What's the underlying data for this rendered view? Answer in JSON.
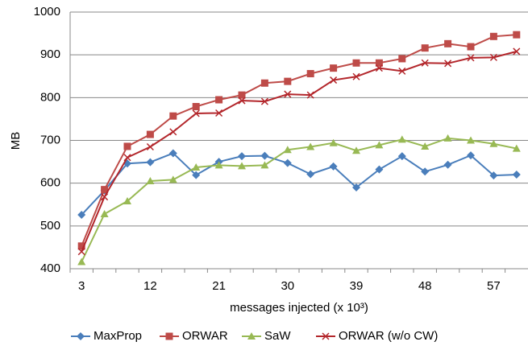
{
  "chart_data": {
    "type": "line",
    "xlabel": "messages injected (x 10³)",
    "ylabel": "MB",
    "categories": [
      3,
      null,
      null,
      12,
      null,
      null,
      21,
      null,
      null,
      30,
      null,
      null,
      39,
      null,
      null,
      48,
      null,
      null,
      57,
      null
    ],
    "series": [
      {
        "name": "MaxProp",
        "color": "#4a7ebb",
        "marker": "diamond",
        "values": [
          526,
          583,
          646,
          649,
          670,
          619,
          650,
          663,
          664,
          647,
          621,
          639,
          590,
          632,
          663,
          627,
          643,
          665,
          618,
          620
        ]
      },
      {
        "name": "ORWAR",
        "color": "#be4b48",
        "marker": "square",
        "values": [
          453,
          585,
          686,
          714,
          757,
          779,
          795,
          806,
          834,
          838,
          856,
          869,
          881,
          881,
          891,
          916,
          926,
          919,
          943,
          947
        ]
      },
      {
        "name": "SaW",
        "color": "#98b954",
        "marker": "triangle",
        "values": [
          416,
          528,
          558,
          605,
          608,
          637,
          642,
          640,
          642,
          678,
          685,
          694,
          676,
          689,
          702,
          686,
          705,
          700,
          692,
          681
        ]
      },
      {
        "name": "ORWAR (w/o CW)",
        "color": "#b3262b",
        "marker": "x",
        "values": [
          440,
          568,
          660,
          685,
          720,
          763,
          764,
          793,
          791,
          808,
          806,
          841,
          849,
          869,
          862,
          881,
          880,
          893,
          894,
          908
        ]
      }
    ],
    "ylim": [
      400,
      1000
    ],
    "yticks": [
      400,
      500,
      600,
      700,
      800,
      900,
      1000
    ],
    "grid": true,
    "legend": "bottom"
  }
}
